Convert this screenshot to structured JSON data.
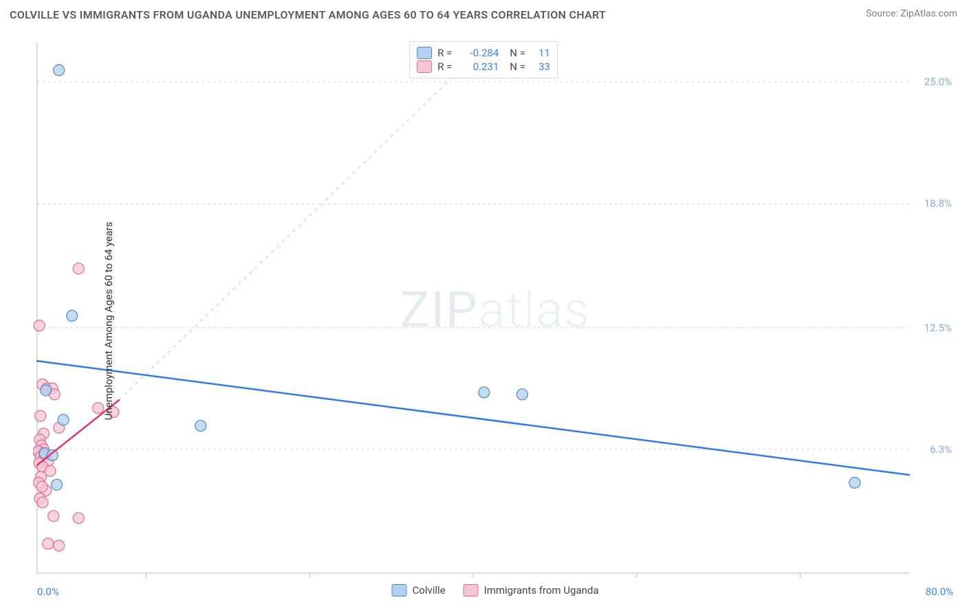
{
  "header": {
    "title": "COLVILLE VS IMMIGRANTS FROM UGANDA UNEMPLOYMENT AMONG AGES 60 TO 64 YEARS CORRELATION CHART",
    "source_prefix": "Source: ",
    "source_name": "ZipAtlas.com"
  },
  "chart": {
    "type": "scatter",
    "ylabel": "Unemployment Among Ages 60 to 64 years",
    "xlim": [
      0,
      80
    ],
    "ylim": [
      0,
      27
    ],
    "x_tick_positions": [
      10,
      25,
      40,
      55,
      70
    ],
    "x_min_label": "0.0%",
    "x_max_label": "80.0%",
    "y_ticks": [
      {
        "v": 6.3,
        "label": "6.3%"
      },
      {
        "v": 12.5,
        "label": "12.5%"
      },
      {
        "v": 18.8,
        "label": "18.8%"
      },
      {
        "v": 25.0,
        "label": "25.0%"
      }
    ],
    "grid_color": "#d0d0d0",
    "axis_color": "#b9b9b9",
    "background_color": "#ffffff",
    "watermark": {
      "strong": "ZIP",
      "light": "atlas"
    },
    "series": [
      {
        "name": "Colville",
        "color_fill": "#b3d0ef",
        "color_stroke": "#4f86c6",
        "trend_color": "#2f7ae5",
        "extrap_color": "#b3d0ef",
        "R": "-0.284",
        "N": "11",
        "marker_radius": 8,
        "points": [
          {
            "x": 2.0,
            "y": 25.6
          },
          {
            "x": 3.2,
            "y": 13.1
          },
          {
            "x": 0.8,
            "y": 9.3
          },
          {
            "x": 2.4,
            "y": 7.8
          },
          {
            "x": 0.7,
            "y": 6.1
          },
          {
            "x": 1.4,
            "y": 6.0
          },
          {
            "x": 1.8,
            "y": 4.5
          },
          {
            "x": 15.0,
            "y": 7.5
          },
          {
            "x": 41.0,
            "y": 9.2
          },
          {
            "x": 44.5,
            "y": 9.1
          },
          {
            "x": 75.0,
            "y": 4.6
          }
        ],
        "trend": {
          "x1": 0,
          "y1": 10.8,
          "x2": 80,
          "y2": 5.0
        }
      },
      {
        "name": "Immigrants from Uganda",
        "color_fill": "#f4c7d4",
        "color_stroke": "#e06a8e",
        "trend_color": "#e3356a",
        "extrap_color": "#f2c3d1",
        "R": "0.231",
        "N": "33",
        "marker_radius": 8,
        "points": [
          {
            "x": 0.2,
            "y": 12.6
          },
          {
            "x": 3.8,
            "y": 15.5
          },
          {
            "x": 0.5,
            "y": 9.6
          },
          {
            "x": 0.9,
            "y": 9.4
          },
          {
            "x": 1.4,
            "y": 9.4
          },
          {
            "x": 1.6,
            "y": 9.1
          },
          {
            "x": 5.6,
            "y": 8.4
          },
          {
            "x": 7.0,
            "y": 8.2
          },
          {
            "x": 0.3,
            "y": 8.0
          },
          {
            "x": 2.0,
            "y": 7.4
          },
          {
            "x": 0.6,
            "y": 7.1
          },
          {
            "x": 0.25,
            "y": 6.8
          },
          {
            "x": 0.4,
            "y": 6.5
          },
          {
            "x": 0.6,
            "y": 6.3
          },
          {
            "x": 0.15,
            "y": 6.2
          },
          {
            "x": 0.55,
            "y": 6.1
          },
          {
            "x": 0.1,
            "y": 6.2
          },
          {
            "x": 0.3,
            "y": 5.9
          },
          {
            "x": 0.7,
            "y": 6.0
          },
          {
            "x": 0.2,
            "y": 5.6
          },
          {
            "x": 1.0,
            "y": 5.7
          },
          {
            "x": 0.5,
            "y": 5.4
          },
          {
            "x": 1.2,
            "y": 5.2
          },
          {
            "x": 0.35,
            "y": 4.9
          },
          {
            "x": 0.15,
            "y": 4.6
          },
          {
            "x": 0.8,
            "y": 4.2
          },
          {
            "x": 0.25,
            "y": 3.8
          },
          {
            "x": 0.5,
            "y": 3.6
          },
          {
            "x": 1.5,
            "y": 2.9
          },
          {
            "x": 3.8,
            "y": 2.8
          },
          {
            "x": 1.0,
            "y": 1.5
          },
          {
            "x": 2.0,
            "y": 1.4
          },
          {
            "x": 0.45,
            "y": 4.4
          }
        ],
        "trend": {
          "x1": 0,
          "y1": 5.5,
          "x2": 7.5,
          "y2": 8.8
        },
        "extrapolate_to": {
          "x": 41,
          "y": 26.8
        }
      }
    ]
  },
  "legends": {
    "top_rows": [
      {
        "swatch_fill": "#b3d0ef",
        "swatch_stroke": "#4f86c6",
        "r_label": "R =",
        "r_val": "-0.284",
        "n_label": "N =",
        "n_val": "11"
      },
      {
        "swatch_fill": "#f4c7d4",
        "swatch_stroke": "#e06a8e",
        "r_label": "R =",
        "r_val": "0.231",
        "n_label": "N =",
        "n_val": "33"
      }
    ],
    "bottom": [
      {
        "swatch_fill": "#b3d0ef",
        "swatch_stroke": "#4f86c6",
        "label": "Colville"
      },
      {
        "swatch_fill": "#f4c7d4",
        "swatch_stroke": "#e06a8e",
        "label": "Immigrants from Uganda"
      }
    ]
  }
}
